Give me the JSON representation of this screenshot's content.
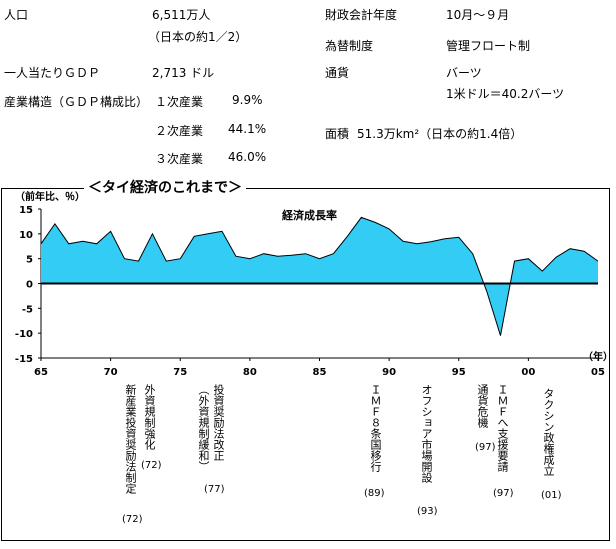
{
  "facts_left": [
    {
      "label": "人口",
      "value": "6,511万人",
      "note": "（日本の約1／2）"
    },
    {
      "label": "一人当たりＧＤＰ",
      "value": "2,713 ドル"
    },
    {
      "label": "産業構造（ＧＤＰ構成比）",
      "rows": [
        {
          "sector": "１次産業",
          "share": "9.9%"
        },
        {
          "sector": "２次産業",
          "share": "44.1%"
        },
        {
          "sector": "３次産業",
          "share": "46.0%"
        }
      ]
    }
  ],
  "facts_right": [
    {
      "label": "財政会計年度",
      "value": "10月～９月"
    },
    {
      "label": "為替制度",
      "value": "管理フロート制"
    },
    {
      "label": "通貨",
      "value": "バーツ",
      "note": "1米ドル＝40.2バーツ"
    },
    {
      "label": "面積",
      "value": "51.3万km²（日本の約1.4倍）"
    }
  ],
  "section_title": "＜タイ経済のこれまで＞",
  "chart_data": {
    "type": "area",
    "title": "経済成長率",
    "ylabel": "（前年比、％）",
    "xlabel": "（年）",
    "ylim": [
      -15,
      15
    ],
    "yticks": [
      "15",
      "10",
      "5",
      "0",
      "-5",
      "-10",
      "-15"
    ],
    "xlim": [
      1965,
      2005
    ],
    "xticks": [
      {
        "year": 1965,
        "label": "65"
      },
      {
        "year": 1970,
        "label": "70"
      },
      {
        "year": 1975,
        "label": "75"
      },
      {
        "year": 1980,
        "label": "80"
      },
      {
        "year": 1985,
        "label": "85"
      },
      {
        "year": 1990,
        "label": "90"
      },
      {
        "year": 1995,
        "label": "95"
      },
      {
        "year": 2000,
        "label": "00"
      },
      {
        "year": 2005,
        "label": "05"
      }
    ],
    "x": [
      1965,
      1966,
      1967,
      1968,
      1969,
      1970,
      1971,
      1972,
      1973,
      1974,
      1975,
      1976,
      1977,
      1978,
      1979,
      1980,
      1981,
      1982,
      1983,
      1984,
      1985,
      1986,
      1987,
      1988,
      1989,
      1990,
      1991,
      1992,
      1993,
      1994,
      1995,
      1996,
      1997,
      1998,
      1999,
      2000,
      2001,
      2002,
      2003,
      2004,
      2005
    ],
    "y": [
      8.0,
      12.0,
      8.0,
      8.5,
      8.0,
      10.5,
      5.0,
      4.5,
      10.0,
      4.5,
      5.0,
      9.5,
      10.0,
      10.5,
      5.5,
      5.0,
      6.0,
      5.5,
      5.7,
      6.0,
      5.0,
      6.0,
      9.5,
      13.3,
      12.3,
      11.0,
      8.5,
      8.0,
      8.4,
      9.0,
      9.3,
      6.0,
      -1.5,
      -10.5,
      4.5,
      5.0,
      2.5,
      5.3,
      7.0,
      6.5,
      4.5
    ],
    "colors": {
      "fill": "#33ccf5",
      "line": "#000000",
      "zero_line": "#000000"
    }
  },
  "events": [
    {
      "year": 1972,
      "text": "新産業投資奨励法制定",
      "note": "(72)"
    },
    {
      "year": 1972,
      "text": "外資規制強化",
      "note": "(72)"
    },
    {
      "year": 1977,
      "text": "投資奨励法改正",
      "note": ""
    },
    {
      "year": 1977,
      "text": "（外資規制緩和）",
      "note": "(77)"
    },
    {
      "year": 1989,
      "text": "ＩＭＦ８条国移行",
      "note": "(89)"
    },
    {
      "year": 1993,
      "text": "オフショア市場開設",
      "note": "(93)"
    },
    {
      "year": 1997,
      "text": "通貨危機",
      "note": "(97)"
    },
    {
      "year": 1997,
      "text": "ＩＭＦへ支援要請",
      "note": "(97)"
    },
    {
      "year": 2001,
      "text": "タクシン政権成立",
      "note": "(01)"
    }
  ]
}
